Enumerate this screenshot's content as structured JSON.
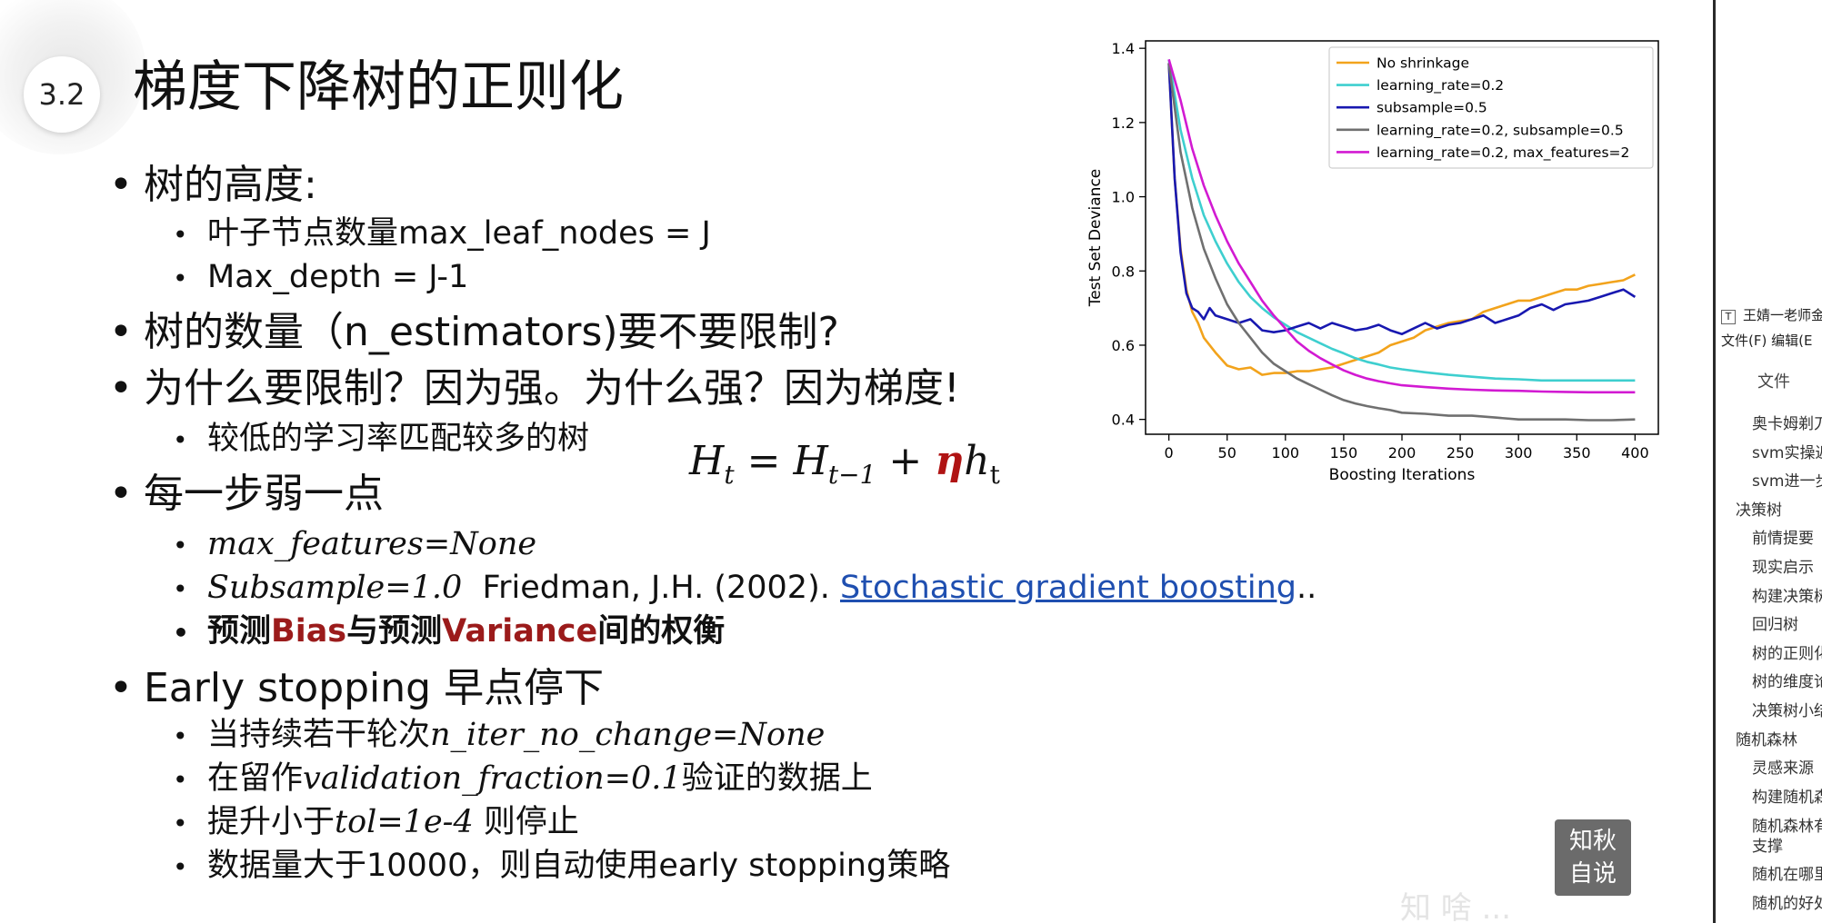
{
  "slide": {
    "badge": "3.2",
    "title": "梯度下降树的正则化",
    "tree_height": "树的高度:",
    "max_leaf_nodes": "叶子节点数量max_leaf_nodes = J",
    "max_depth": "Max_depth = J-1",
    "tree_count": "树的数量（n_estimators)要不要限制?",
    "why_limit": "为什么要限制？因为强。为什么强？因为梯度!",
    "lower_lr": "较低的学习率匹配较多的树",
    "formula": {
      "H": "H",
      "t": "t",
      "eq": " = ",
      "tm1": "t−1",
      "plus": " + ",
      "eta": "η",
      "h": "h"
    },
    "weaker": "每一步弱一点",
    "max_features": "max_features=None",
    "subsample": "Subsample=1.0",
    "friedman": "Friedman, J.H. (2002).",
    "link_text": "Stochastic gradient boosting",
    "link_tail": "..",
    "tradeoff": {
      "p1": "预测",
      "bias": "Bias",
      "p2": "与预测",
      "variance": "Variance",
      "p3": "间的权衡"
    },
    "early_stopping": "Early stopping 早点停下",
    "es1": {
      "a": "当持续若干轮次",
      "b": "n_iter_no_change=None"
    },
    "es2": {
      "a": "在留作",
      "b": "validation_fraction=0.1",
      "c": "验证的数据上"
    },
    "es3": {
      "a": "提升小于",
      "b": "tol=1e-4",
      "c": " 则停止"
    },
    "es4": "数据量大于10000，则自动使用early stopping策略"
  },
  "chart_data": {
    "type": "line",
    "xlabel": "Boosting Iterations",
    "ylabel": "Test Set Deviance",
    "xlim": [
      -20,
      420
    ],
    "ylim": [
      0.36,
      1.42
    ],
    "xticks": [
      0,
      50,
      100,
      150,
      200,
      250,
      300,
      350,
      400
    ],
    "yticks": [
      0.4,
      0.6,
      0.8,
      1.0,
      1.2,
      1.4
    ],
    "legend_position": "top-right",
    "grid": false,
    "series": [
      {
        "name": "No shrinkage",
        "color": "#f2a31c",
        "x": [
          0,
          5,
          10,
          15,
          20,
          25,
          30,
          40,
          50,
          60,
          70,
          80,
          90,
          100,
          110,
          120,
          130,
          140,
          150,
          160,
          170,
          180,
          190,
          200,
          210,
          220,
          230,
          240,
          250,
          260,
          270,
          280,
          290,
          300,
          310,
          320,
          330,
          340,
          350,
          360,
          370,
          380,
          390,
          400
        ],
        "y": [
          1.36,
          1.05,
          0.86,
          0.75,
          0.69,
          0.66,
          0.62,
          0.58,
          0.545,
          0.535,
          0.54,
          0.52,
          0.525,
          0.525,
          0.53,
          0.53,
          0.535,
          0.54,
          0.55,
          0.56,
          0.57,
          0.58,
          0.6,
          0.61,
          0.62,
          0.64,
          0.65,
          0.66,
          0.665,
          0.67,
          0.69,
          0.7,
          0.71,
          0.72,
          0.72,
          0.73,
          0.74,
          0.75,
          0.75,
          0.76,
          0.765,
          0.77,
          0.775,
          0.79
        ]
      },
      {
        "name": "learning_rate=0.2",
        "color": "#3ecfcf",
        "x": [
          0,
          10,
          20,
          30,
          40,
          50,
          60,
          70,
          80,
          90,
          100,
          110,
          120,
          130,
          140,
          150,
          160,
          170,
          180,
          190,
          200,
          220,
          240,
          260,
          280,
          300,
          320,
          340,
          360,
          380,
          400
        ],
        "y": [
          1.37,
          1.18,
          1.05,
          0.95,
          0.88,
          0.82,
          0.77,
          0.73,
          0.7,
          0.675,
          0.655,
          0.635,
          0.62,
          0.605,
          0.59,
          0.578,
          0.565,
          0.555,
          0.548,
          0.54,
          0.535,
          0.527,
          0.52,
          0.515,
          0.51,
          0.508,
          0.505,
          0.505,
          0.505,
          0.505,
          0.505
        ]
      },
      {
        "name": "subsample=0.5",
        "color": "#1818b0",
        "x": [
          0,
          5,
          10,
          15,
          20,
          25,
          30,
          35,
          40,
          50,
          60,
          70,
          80,
          90,
          100,
          110,
          120,
          130,
          140,
          150,
          160,
          170,
          180,
          190,
          200,
          210,
          220,
          230,
          240,
          250,
          260,
          270,
          280,
          290,
          300,
          310,
          320,
          330,
          340,
          350,
          360,
          370,
          380,
          390,
          400
        ],
        "y": [
          1.36,
          1.05,
          0.85,
          0.74,
          0.7,
          0.69,
          0.67,
          0.7,
          0.68,
          0.67,
          0.66,
          0.67,
          0.64,
          0.635,
          0.64,
          0.65,
          0.66,
          0.645,
          0.66,
          0.65,
          0.64,
          0.645,
          0.655,
          0.64,
          0.63,
          0.645,
          0.66,
          0.645,
          0.655,
          0.66,
          0.67,
          0.68,
          0.66,
          0.67,
          0.68,
          0.7,
          0.71,
          0.695,
          0.71,
          0.715,
          0.72,
          0.73,
          0.74,
          0.75,
          0.73
        ]
      },
      {
        "name": "learning_rate=0.2, subsample=0.5",
        "color": "#707070",
        "x": [
          0,
          10,
          20,
          30,
          40,
          50,
          60,
          70,
          80,
          90,
          100,
          110,
          120,
          130,
          140,
          150,
          160,
          170,
          180,
          190,
          200,
          220,
          240,
          260,
          280,
          300,
          320,
          340,
          360,
          380,
          400
        ],
        "y": [
          1.36,
          1.12,
          0.97,
          0.86,
          0.78,
          0.71,
          0.66,
          0.62,
          0.58,
          0.55,
          0.53,
          0.51,
          0.495,
          0.48,
          0.465,
          0.452,
          0.443,
          0.436,
          0.43,
          0.425,
          0.418,
          0.415,
          0.41,
          0.41,
          0.405,
          0.4,
          0.4,
          0.4,
          0.398,
          0.398,
          0.4
        ]
      },
      {
        "name": "learning_rate=0.2, max_features=2",
        "color": "#d21ad2",
        "x": [
          0,
          10,
          20,
          30,
          40,
          50,
          60,
          70,
          80,
          90,
          100,
          110,
          120,
          130,
          140,
          150,
          160,
          170,
          180,
          190,
          200,
          220,
          240,
          260,
          280,
          300,
          320,
          340,
          360,
          380,
          400
        ],
        "y": [
          1.37,
          1.26,
          1.13,
          1.03,
          0.95,
          0.88,
          0.82,
          0.77,
          0.72,
          0.68,
          0.645,
          0.61,
          0.585,
          0.565,
          0.548,
          0.532,
          0.52,
          0.51,
          0.503,
          0.497,
          0.492,
          0.487,
          0.483,
          0.48,
          0.478,
          0.477,
          0.475,
          0.474,
          0.473,
          0.473,
          0.473
        ]
      }
    ]
  },
  "watermark": {
    "badge": "知秋\n自说",
    "text": "  知 啥 ..."
  },
  "sidebar": {
    "doc_title": "王婧一老师金",
    "menu": "文件(F)   编辑(E",
    "section": "文件",
    "items": [
      {
        "label": "奥卡姆剃刀",
        "level": 2
      },
      {
        "label": "svm实操返",
        "level": 2
      },
      {
        "label": "svm进一步",
        "level": 2
      },
      {
        "label": "决策树",
        "level": 1
      },
      {
        "label": "前情提要",
        "level": 2
      },
      {
        "label": "现实启示",
        "level": 2
      },
      {
        "label": "构建决策树",
        "level": 2
      },
      {
        "label": "回归树",
        "level": 2
      },
      {
        "label": "树的正则化",
        "level": 2
      },
      {
        "label": "树的维度论",
        "level": 2
      },
      {
        "label": "决策树小结",
        "level": 2
      },
      {
        "label": "随机森林",
        "level": 1
      },
      {
        "label": "灵感来源",
        "level": 2
      },
      {
        "label": "构建随机森",
        "level": 2
      },
      {
        "label": "随机森林有",
        "label2": "支撑",
        "level": 2
      },
      {
        "label": "随机在哪里",
        "level": 2
      },
      {
        "label": "随机的好处",
        "level": 2
      }
    ]
  }
}
